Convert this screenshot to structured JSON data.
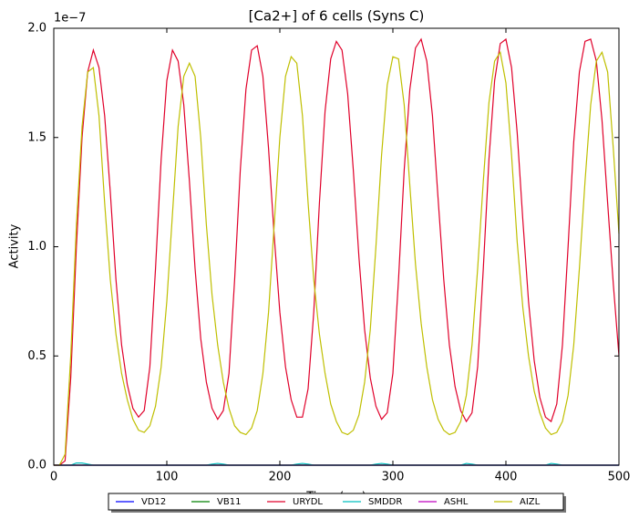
{
  "chart_data": {
    "type": "line",
    "title": "[Ca2+] of 6 cells (Syns C)",
    "x_label": "Time (ms)",
    "y_label": "Activity",
    "y_offset_label": "1e−7",
    "xlim": [
      0,
      500
    ],
    "xticks": [
      0,
      100,
      200,
      300,
      400,
      500
    ],
    "ylim": [
      0,
      2.0
    ],
    "yticks": [
      {
        "value": 0,
        "label": "0.0"
      },
      {
        "value": 0.5,
        "label": "0.5"
      },
      {
        "value": 1.0,
        "label": "1.0"
      },
      {
        "value": 1.5,
        "label": "1.5"
      },
      {
        "value": 2.0,
        "label": "2.0"
      }
    ],
    "grid": false,
    "legend": "bottom",
    "x": [
      0,
      5,
      10,
      15,
      20,
      25,
      30,
      35,
      40,
      45,
      50,
      55,
      60,
      65,
      70,
      75,
      80,
      85,
      90,
      95,
      100,
      105,
      110,
      115,
      120,
      125,
      130,
      135,
      140,
      145,
      150,
      155,
      160,
      165,
      170,
      175,
      180,
      185,
      190,
      195,
      200,
      205,
      210,
      215,
      220,
      225,
      230,
      235,
      240,
      245,
      250,
      255,
      260,
      265,
      270,
      275,
      280,
      285,
      290,
      295,
      300,
      305,
      310,
      315,
      320,
      325,
      330,
      335,
      340,
      345,
      350,
      355,
      360,
      365,
      370,
      375,
      380,
      385,
      390,
      395,
      400,
      405,
      410,
      415,
      420,
      425,
      430,
      435,
      440,
      445,
      450,
      455,
      460,
      465,
      470,
      475,
      480,
      485,
      490,
      495,
      500
    ],
    "series": [
      {
        "name": "VD12",
        "color": "#0000ff",
        "values": [
          0,
          0,
          0,
          0,
          0,
          0,
          0,
          0,
          0,
          0,
          0,
          0,
          0,
          0,
          0,
          0,
          0,
          0,
          0,
          0,
          0,
          0,
          0,
          0,
          0,
          0,
          0,
          0,
          0,
          0,
          0,
          0,
          0,
          0,
          0,
          0,
          0,
          0,
          0,
          0,
          0,
          0,
          0,
          0,
          0,
          0,
          0,
          0,
          0,
          0,
          0,
          0,
          0,
          0,
          0,
          0,
          0,
          0,
          0,
          0,
          0,
          0,
          0,
          0,
          0,
          0,
          0,
          0,
          0,
          0,
          0,
          0,
          0,
          0,
          0,
          0,
          0,
          0,
          0,
          0,
          0,
          0,
          0,
          0,
          0,
          0,
          0,
          0,
          0,
          0,
          0,
          0,
          0,
          0,
          0,
          0,
          0,
          0,
          0,
          0,
          0
        ]
      },
      {
        "name": "VB11",
        "color": "#008000",
        "values": [
          0,
          0,
          0,
          0,
          0,
          0,
          0,
          0,
          0,
          0,
          0,
          0,
          0,
          0,
          0,
          0,
          0,
          0,
          0,
          0,
          0,
          0,
          0,
          0,
          0,
          0,
          0,
          0,
          0,
          0,
          0,
          0,
          0,
          0,
          0,
          0,
          0,
          0,
          0,
          0,
          0,
          0,
          0,
          0,
          0,
          0,
          0,
          0,
          0,
          0,
          0,
          0,
          0,
          0,
          0,
          0,
          0,
          0,
          0,
          0,
          0,
          0,
          0,
          0,
          0,
          0,
          0,
          0,
          0,
          0,
          0,
          0,
          0,
          0,
          0,
          0,
          0,
          0,
          0,
          0,
          0,
          0,
          0,
          0,
          0,
          0,
          0,
          0,
          0,
          0,
          0,
          0,
          0,
          0,
          0,
          0,
          0,
          0,
          0,
          0,
          0
        ]
      },
      {
        "name": "URYDL",
        "color": "#e0002a",
        "values": [
          0,
          0,
          0.02,
          0.4,
          1.0,
          1.5,
          1.8,
          1.9,
          1.82,
          1.6,
          1.25,
          0.85,
          0.55,
          0.37,
          0.26,
          0.22,
          0.25,
          0.45,
          0.9,
          1.4,
          1.76,
          1.9,
          1.85,
          1.65,
          1.3,
          0.9,
          0.58,
          0.38,
          0.26,
          0.21,
          0.25,
          0.42,
          0.85,
          1.35,
          1.72,
          1.9,
          1.92,
          1.78,
          1.45,
          1.05,
          0.7,
          0.45,
          0.3,
          0.22,
          0.22,
          0.35,
          0.7,
          1.2,
          1.62,
          1.86,
          1.94,
          1.9,
          1.7,
          1.35,
          0.95,
          0.62,
          0.4,
          0.27,
          0.21,
          0.24,
          0.42,
          0.85,
          1.35,
          1.72,
          1.91,
          1.95,
          1.85,
          1.6,
          1.22,
          0.85,
          0.55,
          0.36,
          0.25,
          0.2,
          0.24,
          0.45,
          0.9,
          1.4,
          1.76,
          1.93,
          1.95,
          1.82,
          1.52,
          1.12,
          0.75,
          0.48,
          0.31,
          0.22,
          0.2,
          0.28,
          0.55,
          1.0,
          1.48,
          1.8,
          1.94,
          1.95,
          1.85,
          1.58,
          1.2,
          0.83,
          0.5
        ]
      },
      {
        "name": "SMDDR",
        "color": "#00bfbf",
        "values": [
          0,
          0,
          0,
          0,
          0.01,
          0.01,
          0.005,
          0,
          0,
          0,
          0,
          0,
          0,
          0,
          0,
          0,
          0,
          0,
          0,
          0,
          0,
          0,
          0,
          0,
          0,
          0,
          0,
          0,
          0.005,
          0.008,
          0.005,
          0,
          0,
          0,
          0,
          0,
          0,
          0,
          0,
          0,
          0,
          0,
          0,
          0.005,
          0.008,
          0.005,
          0,
          0,
          0,
          0,
          0,
          0,
          0,
          0,
          0,
          0,
          0,
          0.005,
          0.008,
          0.005,
          0,
          0,
          0,
          0,
          0,
          0,
          0,
          0,
          0,
          0,
          0,
          0,
          0,
          0.008,
          0.005,
          0,
          0,
          0,
          0,
          0,
          0,
          0,
          0,
          0,
          0,
          0,
          0,
          0,
          0.008,
          0.005,
          0,
          0,
          0,
          0,
          0,
          0,
          0,
          0,
          0,
          0,
          0
        ]
      },
      {
        "name": "ASHL",
        "color": "#bf00bf",
        "values": [
          0,
          0,
          0,
          0,
          0,
          0,
          0,
          0,
          0,
          0,
          0,
          0,
          0,
          0,
          0,
          0,
          0,
          0,
          0,
          0,
          0,
          0,
          0,
          0,
          0,
          0,
          0,
          0,
          0,
          0,
          0,
          0,
          0,
          0,
          0,
          0,
          0,
          0,
          0,
          0,
          0,
          0,
          0,
          0,
          0,
          0,
          0,
          0,
          0,
          0,
          0,
          0,
          0,
          0,
          0,
          0,
          0,
          0,
          0,
          0,
          0,
          0,
          0,
          0,
          0,
          0,
          0,
          0,
          0,
          0,
          0,
          0,
          0,
          0,
          0,
          0,
          0,
          0,
          0,
          0,
          0,
          0,
          0,
          0,
          0,
          0,
          0,
          0,
          0,
          0,
          0,
          0,
          0,
          0,
          0,
          0,
          0,
          0,
          0,
          0,
          0
        ]
      },
      {
        "name": "AIZL",
        "color": "#bfbf00",
        "values": [
          0,
          0,
          0.05,
          0.5,
          1.1,
          1.55,
          1.8,
          1.82,
          1.6,
          1.2,
          0.85,
          0.6,
          0.42,
          0.3,
          0.21,
          0.16,
          0.15,
          0.18,
          0.27,
          0.45,
          0.75,
          1.15,
          1.55,
          1.78,
          1.84,
          1.78,
          1.5,
          1.1,
          0.78,
          0.55,
          0.38,
          0.26,
          0.18,
          0.15,
          0.14,
          0.17,
          0.25,
          0.42,
          0.7,
          1.1,
          1.5,
          1.78,
          1.87,
          1.84,
          1.6,
          1.2,
          0.85,
          0.6,
          0.42,
          0.28,
          0.2,
          0.15,
          0.14,
          0.16,
          0.23,
          0.38,
          0.62,
          1.0,
          1.42,
          1.74,
          1.87,
          1.86,
          1.65,
          1.28,
          0.92,
          0.65,
          0.45,
          0.3,
          0.21,
          0.16,
          0.14,
          0.15,
          0.2,
          0.32,
          0.55,
          0.9,
          1.3,
          1.66,
          1.85,
          1.89,
          1.75,
          1.42,
          1.02,
          0.72,
          0.5,
          0.34,
          0.24,
          0.17,
          0.14,
          0.15,
          0.2,
          0.32,
          0.55,
          0.9,
          1.3,
          1.65,
          1.85,
          1.89,
          1.8,
          1.45,
          1.06
        ]
      }
    ]
  }
}
